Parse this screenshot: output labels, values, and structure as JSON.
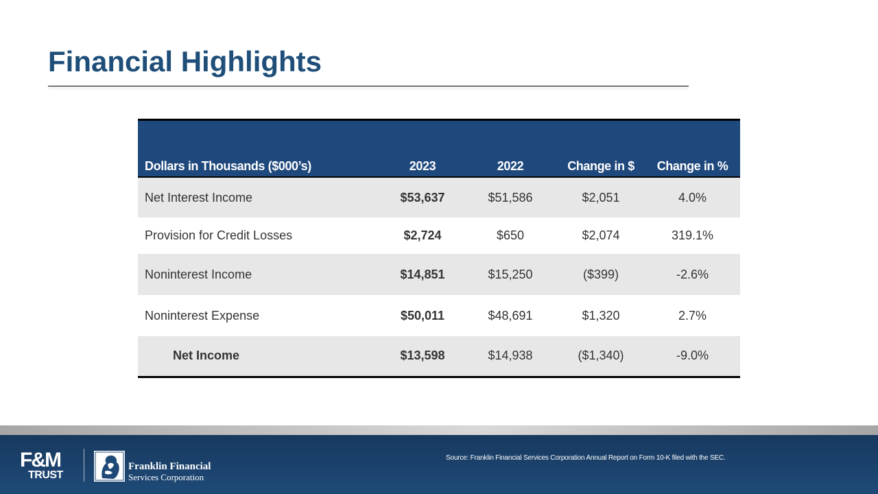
{
  "slide": {
    "title": "Financial Highlights"
  },
  "table": {
    "headers": [
      "Dollars in Thousands ($000’s)",
      "2023",
      "2022",
      "Change in $",
      "Change in %"
    ],
    "rows": [
      {
        "label": "Net Interest Income",
        "y2023": "$53,637",
        "y2022": "$51,586",
        "change_dollar": "$2,051",
        "change_pct": "4.0%"
      },
      {
        "label": "Provision for Credit Losses",
        "y2023": "$2,724",
        "y2022": "$650",
        "change_dollar": "$2,074",
        "change_pct": "319.1%"
      },
      {
        "label": "Noninterest Income",
        "y2023": "$14,851",
        "y2022": "$15,250",
        "change_dollar": "($399)",
        "change_pct": "-2.6%"
      },
      {
        "label": "Noninterest Expense",
        "y2023": "$50,011",
        "y2022": "$48,691",
        "change_dollar": "$1,320",
        "change_pct": "2.7%"
      },
      {
        "label": "Net Income",
        "y2023": "$13,598",
        "y2022": "$14,938",
        "change_dollar": "($1,340)",
        "change_pct": "-9.0%"
      }
    ]
  },
  "footer": {
    "fm_logo_top": "F&M",
    "fm_logo_bottom": "TRUST",
    "ffsc_line1": "Franklin Financial",
    "ffsc_line2": "Services Corporation",
    "seal_icon": "portrait-seal-icon",
    "source": "Source: Franklin Financial Services Corporation Annual Report on Form 10-K filed with the SEC."
  },
  "colors": {
    "title": "#1f4e79",
    "header_bg": "#1f497d",
    "row_shade": "#e7e7e7",
    "footer_bg": "#1f4a78"
  }
}
